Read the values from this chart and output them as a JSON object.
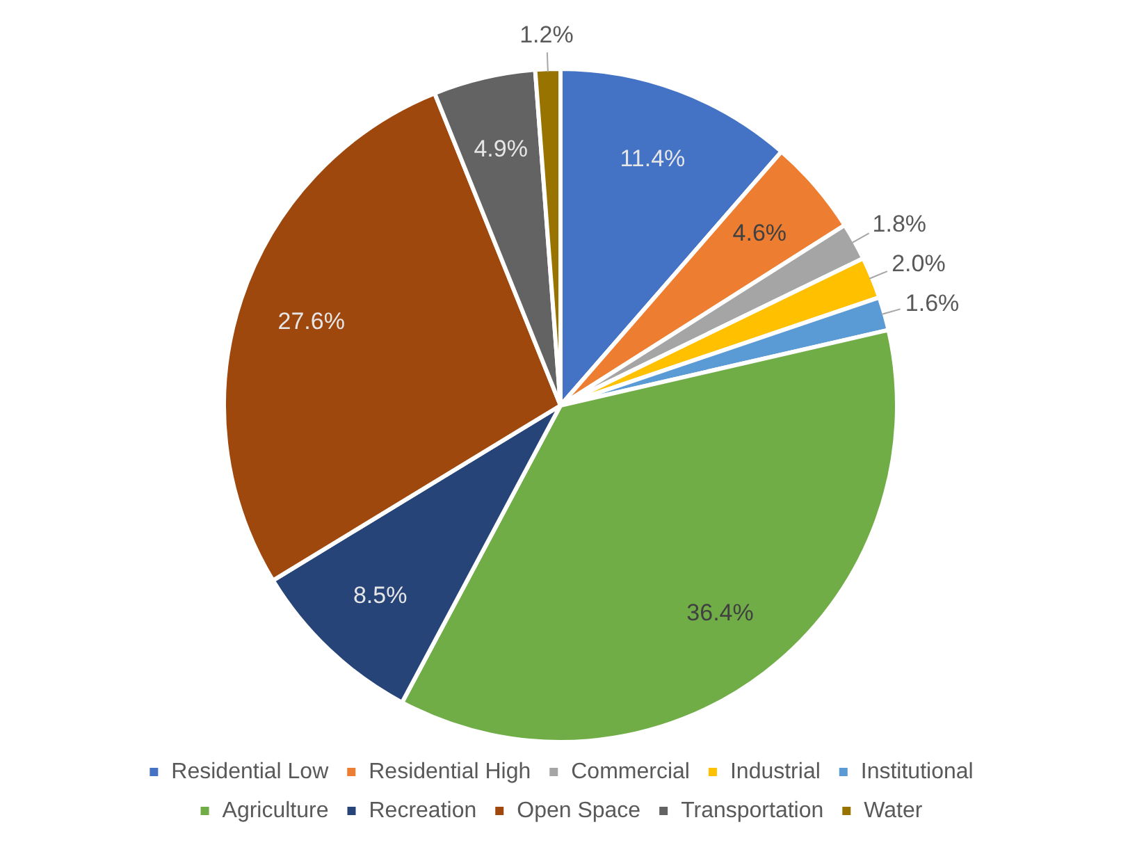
{
  "chart_data": {
    "type": "pie",
    "categories": [
      "Residential Low",
      "Residential High",
      "Commercial",
      "Industrial",
      "Institutional",
      "Agriculture",
      "Recreation",
      "Open Space",
      "Transportation",
      "Water"
    ],
    "values": [
      11.4,
      4.6,
      1.8,
      2.0,
      1.6,
      36.4,
      8.5,
      27.6,
      4.9,
      1.2
    ],
    "colors": [
      "#4472c4",
      "#ed7d31",
      "#a5a5a5",
      "#ffc000",
      "#5b9bd5",
      "#70ad47",
      "#264478",
      "#9e480e",
      "#636363",
      "#997300"
    ],
    "value_labels": [
      "11.4%",
      "4.6%",
      "1.8%",
      "2.0%",
      "1.6%",
      "36.4%",
      "8.5%",
      "27.6%",
      "4.9%",
      "1.2%"
    ],
    "legend": "bottom"
  }
}
